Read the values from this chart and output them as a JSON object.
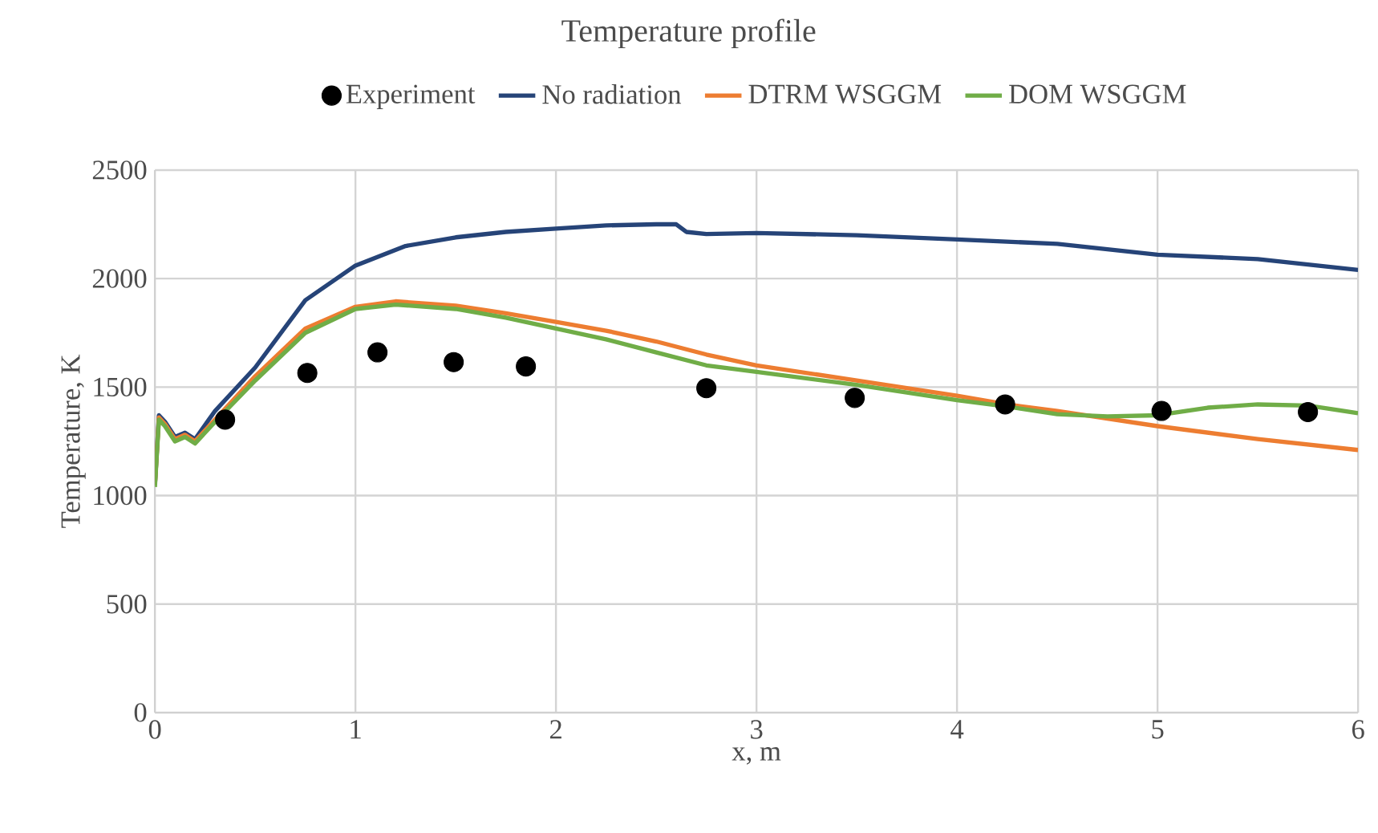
{
  "chart_data": {
    "type": "line",
    "title": "Temperature profile",
    "xlabel": "x, m",
    "ylabel": "Temperature, K",
    "xlim": [
      0,
      6
    ],
    "ylim": [
      0,
      2500
    ],
    "xticks": [
      0,
      1,
      2,
      3,
      4,
      5,
      6
    ],
    "yticks": [
      0,
      500,
      1000,
      1500,
      2000,
      2500
    ],
    "grid": true,
    "legend": "top",
    "marker": "none",
    "series": [
      {
        "name": "Experiment",
        "type": "scatter",
        "marker": "circle",
        "color": "#000000",
        "x": [
          0.35,
          0.76,
          1.11,
          1.49,
          1.85,
          2.75,
          3.49,
          4.24,
          5.02,
          5.75
        ],
        "values": [
          1350,
          1565,
          1660,
          1615,
          1595,
          1495,
          1450,
          1420,
          1390,
          1385
        ]
      },
      {
        "name": "No radiation",
        "type": "line",
        "color": "#264478",
        "x": [
          0,
          0.02,
          0.05,
          0.1,
          0.15,
          0.2,
          0.3,
          0.5,
          0.75,
          1.0,
          1.25,
          1.5,
          1.75,
          2.0,
          2.25,
          2.5,
          2.6,
          2.65,
          2.75,
          3.0,
          3.5,
          4.0,
          4.5,
          5.0,
          5.5,
          6.0
        ],
        "values": [
          1050,
          1370,
          1340,
          1270,
          1290,
          1260,
          1390,
          1590,
          1900,
          2060,
          2150,
          2190,
          2215,
          2230,
          2245,
          2250,
          2250,
          2215,
          2205,
          2210,
          2200,
          2180,
          2160,
          2110,
          2090,
          2040
        ]
      },
      {
        "name": "DTRM WSGGM",
        "type": "line",
        "color": "#ed7d31",
        "x": [
          0,
          0.02,
          0.05,
          0.1,
          0.15,
          0.2,
          0.3,
          0.5,
          0.75,
          1.0,
          1.2,
          1.5,
          1.75,
          2.0,
          2.25,
          2.5,
          2.75,
          3.0,
          3.5,
          4.0,
          4.25,
          4.5,
          5.0,
          5.5,
          6.0
        ],
        "values": [
          1050,
          1360,
          1330,
          1260,
          1280,
          1250,
          1350,
          1550,
          1770,
          1870,
          1895,
          1875,
          1840,
          1800,
          1760,
          1710,
          1650,
          1600,
          1530,
          1460,
          1420,
          1390,
          1320,
          1260,
          1210
        ]
      },
      {
        "name": "DOM WSGGM",
        "type": "line",
        "color": "#70ad47",
        "x": [
          0,
          0.02,
          0.05,
          0.1,
          0.15,
          0.2,
          0.3,
          0.5,
          0.75,
          1.0,
          1.2,
          1.5,
          1.75,
          2.0,
          2.25,
          2.5,
          2.75,
          3.0,
          3.5,
          4.0,
          4.25,
          4.5,
          4.75,
          5.0,
          5.25,
          5.5,
          5.75,
          6.0
        ],
        "values": [
          1040,
          1350,
          1320,
          1250,
          1270,
          1240,
          1340,
          1530,
          1750,
          1860,
          1880,
          1860,
          1820,
          1770,
          1720,
          1660,
          1600,
          1570,
          1510,
          1440,
          1410,
          1375,
          1365,
          1370,
          1405,
          1420,
          1415,
          1380
        ]
      }
    ]
  }
}
